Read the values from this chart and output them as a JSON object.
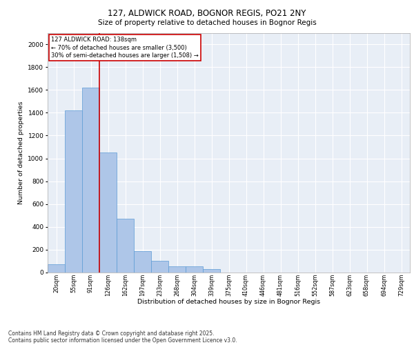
{
  "title1": "127, ALDWICK ROAD, BOGNOR REGIS, PO21 2NY",
  "title2": "Size of property relative to detached houses in Bognor Regis",
  "xlabel": "Distribution of detached houses by size in Bognor Regis",
  "ylabel": "Number of detached properties",
  "categories": [
    "20sqm",
    "55sqm",
    "91sqm",
    "126sqm",
    "162sqm",
    "197sqm",
    "233sqm",
    "268sqm",
    "304sqm",
    "339sqm",
    "375sqm",
    "410sqm",
    "446sqm",
    "481sqm",
    "516sqm",
    "552sqm",
    "587sqm",
    "623sqm",
    "658sqm",
    "694sqm",
    "729sqm"
  ],
  "values": [
    75,
    1420,
    1620,
    1050,
    470,
    190,
    100,
    55,
    55,
    30,
    0,
    0,
    0,
    0,
    0,
    0,
    0,
    0,
    0,
    0,
    0
  ],
  "bar_color": "#aec6e8",
  "bar_edge_color": "#5b9bd5",
  "bg_color": "#e8eef6",
  "grid_color": "#ffffff",
  "vline_color": "#cc0000",
  "vline_pos": 2.5,
  "annotation_text": "127 ALDWICK ROAD: 138sqm\n← 70% of detached houses are smaller (3,500)\n30% of semi-detached houses are larger (1,508) →",
  "annotation_box_color": "#cc0000",
  "ylim": [
    0,
    2100
  ],
  "yticks": [
    0,
    200,
    400,
    600,
    800,
    1000,
    1200,
    1400,
    1600,
    1800,
    2000
  ],
  "footer1": "Contains HM Land Registry data © Crown copyright and database right 2025.",
  "footer2": "Contains public sector information licensed under the Open Government Licence v3.0."
}
